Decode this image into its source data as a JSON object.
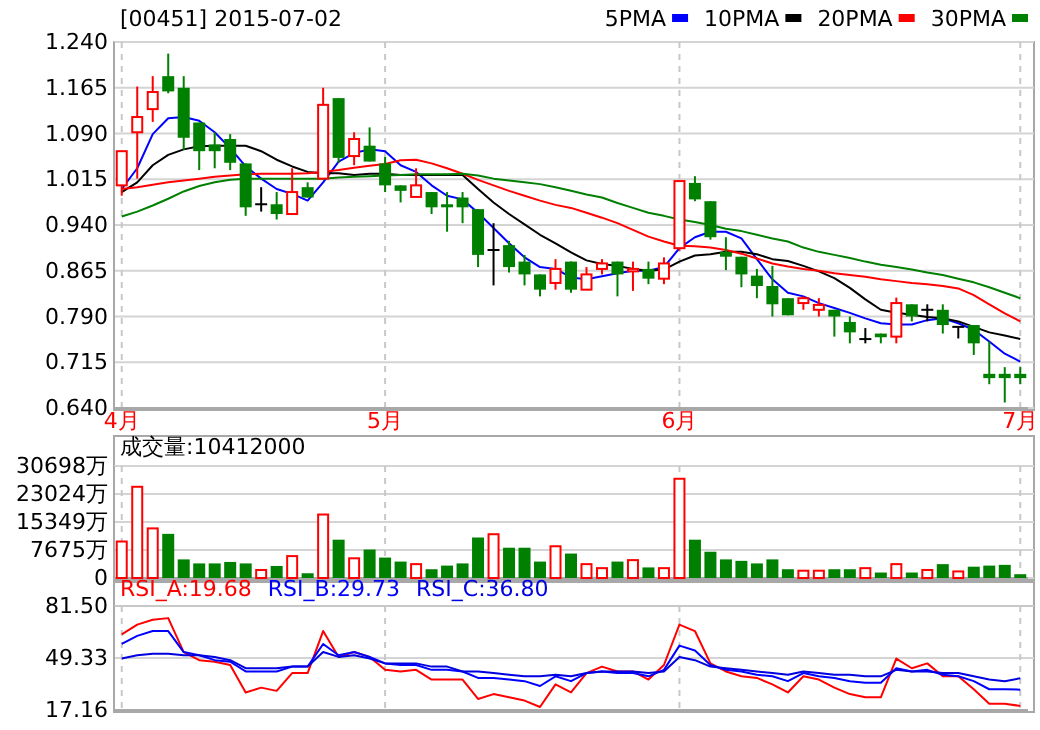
{
  "chart_data": [
    {
      "type": "candlestick",
      "title": "[00451] 2015-07-02",
      "categories": [
        "4月",
        null,
        null,
        null,
        null,
        null,
        null,
        null,
        null,
        null,
        null,
        null,
        null,
        null,
        null,
        null,
        null,
        "5月",
        null,
        null,
        null,
        null,
        null,
        null,
        null,
        null,
        null,
        null,
        null,
        null,
        null,
        null,
        null,
        null,
        null,
        null,
        "6月",
        null,
        null,
        null,
        null,
        null,
        null,
        null,
        null,
        null,
        null,
        null,
        null,
        null,
        null,
        null,
        null,
        null,
        null,
        null,
        null,
        null,
        "7月"
      ],
      "ylim": [
        0.64,
        1.24
      ],
      "yticks": [
        {
          "value": 0.64,
          "label": "0.640"
        },
        {
          "value": 0.715,
          "label": "0.715"
        },
        {
          "value": 0.79,
          "label": "0.790"
        },
        {
          "value": 0.865,
          "label": "0.865"
        },
        {
          "value": 0.94,
          "label": "0.940"
        },
        {
          "value": 1.015,
          "label": "1.015"
        },
        {
          "value": 1.09,
          "label": "1.090"
        },
        {
          "value": 1.165,
          "label": "1.165"
        },
        {
          "value": 1.24,
          "label": "1.240"
        }
      ],
      "grid": true,
      "legend": "top right",
      "series": [
        {
          "name": "5PMA",
          "type": "line",
          "color": "#0000ff",
          "values": [
            0.999,
            1.033,
            1.089,
            1.115,
            1.117,
            1.111,
            1.092,
            1.066,
            1.036,
            1.016,
            0.999,
            0.991,
            0.98,
            1.01,
            1.044,
            1.058,
            1.064,
            1.061,
            1.038,
            1.027,
            1.005,
            0.988,
            0.982,
            0.96,
            0.935,
            0.91,
            0.887,
            0.871,
            0.868,
            0.854,
            0.851,
            0.856,
            0.861,
            0.865,
            0.865,
            0.871,
            0.902,
            0.92,
            0.929,
            0.929,
            0.918,
            0.884,
            0.851,
            0.829,
            0.823,
            0.812,
            0.804,
            0.796,
            0.787,
            0.779,
            0.777,
            0.777,
            0.784,
            0.787,
            0.779,
            0.768,
            0.749,
            0.729,
            0.716
          ]
        },
        {
          "name": "10PMA",
          "type": "line",
          "color": "#000000",
          "values": [
            0.994,
            1.01,
            1.038,
            1.055,
            1.064,
            1.069,
            1.07,
            1.07,
            1.07,
            1.061,
            1.047,
            1.036,
            1.027,
            1.025,
            1.025,
            1.022,
            1.024,
            1.024,
            1.022,
            1.022,
            1.022,
            1.022,
            1.022,
            0.999,
            0.977,
            0.958,
            0.941,
            0.924,
            0.91,
            0.895,
            0.882,
            0.876,
            0.873,
            0.868,
            0.865,
            0.867,
            0.88,
            0.89,
            0.892,
            0.896,
            0.896,
            0.892,
            0.884,
            0.881,
            0.873,
            0.864,
            0.853,
            0.837,
            0.818,
            0.801,
            0.796,
            0.793,
            0.789,
            0.787,
            0.782,
            0.773,
            0.764,
            0.759,
            0.753
          ]
        },
        {
          "name": "20PMA",
          "type": "line",
          "color": "#ff0000",
          "values": [
            0.999,
            1.002,
            1.006,
            1.01,
            1.013,
            1.016,
            1.019,
            1.021,
            1.023,
            1.024,
            1.024,
            1.024,
            1.025,
            1.027,
            1.03,
            1.034,
            1.037,
            1.04,
            1.046,
            1.047,
            1.041,
            1.033,
            1.024,
            1.014,
            1.005,
            0.996,
            0.988,
            0.98,
            0.973,
            0.968,
            0.96,
            0.952,
            0.943,
            0.932,
            0.921,
            0.913,
            0.906,
            0.905,
            0.903,
            0.899,
            0.893,
            0.885,
            0.877,
            0.872,
            0.868,
            0.865,
            0.861,
            0.858,
            0.855,
            0.851,
            0.848,
            0.845,
            0.843,
            0.84,
            0.836,
            0.825,
            0.81,
            0.795,
            0.782
          ]
        },
        {
          "name": "30PMA",
          "type": "line",
          "color": "#008000",
          "values": [
            0.954,
            0.962,
            0.972,
            0.983,
            0.995,
            1.004,
            1.01,
            1.014,
            1.016,
            1.016,
            1.016,
            1.016,
            1.016,
            1.016,
            1.018,
            1.019,
            1.02,
            1.021,
            1.022,
            1.023,
            1.023,
            1.023,
            1.024,
            1.021,
            1.016,
            1.013,
            1.01,
            1.007,
            1.002,
            0.996,
            0.99,
            0.985,
            0.976,
            0.968,
            0.96,
            0.955,
            0.949,
            0.945,
            0.94,
            0.934,
            0.93,
            0.924,
            0.918,
            0.913,
            0.903,
            0.896,
            0.891,
            0.886,
            0.88,
            0.875,
            0.871,
            0.867,
            0.862,
            0.858,
            0.852,
            0.846,
            0.838,
            0.829,
            0.82
          ]
        },
        {
          "type": "candlestick",
          "ohlc": [
            [
              1.005,
              1.061,
              0.988,
              1.061
            ],
            [
              1.092,
              1.167,
              1.016,
              1.117
            ],
            [
              1.13,
              1.184,
              1.109,
              1.158
            ],
            [
              1.184,
              1.221,
              1.156,
              1.159
            ],
            [
              1.165,
              1.184,
              1.063,
              1.083
            ],
            [
              1.108,
              1.108,
              1.03,
              1.061
            ],
            [
              1.072,
              1.092,
              1.033,
              1.061
            ],
            [
              1.081,
              1.089,
              1.03,
              1.042
            ],
            [
              1.041,
              1.041,
              0.955,
              0.969
            ],
            [
              0.974,
              1.002,
              0.962,
              0.974
            ],
            [
              0.974,
              0.994,
              0.949,
              0.958
            ],
            [
              0.958,
              1.033,
              0.957,
              0.994
            ],
            [
              1.002,
              1.01,
              0.985,
              0.985
            ],
            [
              1.016,
              1.165,
              1.016,
              1.137
            ],
            [
              1.148,
              1.148,
              1.042,
              1.05
            ],
            [
              1.053,
              1.092,
              1.038,
              1.081
            ],
            [
              1.07,
              1.1,
              1.044,
              1.044
            ],
            [
              1.041,
              1.052,
              0.994,
              1.005
            ],
            [
              1.005,
              1.005,
              0.977,
              0.996
            ],
            [
              0.986,
              1.033,
              0.986,
              1.005
            ],
            [
              0.994,
              0.994,
              0.958,
              0.969
            ],
            [
              0.974,
              0.994,
              0.929,
              0.969
            ],
            [
              0.985,
              0.994,
              0.943,
              0.969
            ],
            [
              0.966,
              0.966,
              0.871,
              0.891
            ],
            [
              0.899,
              0.943,
              0.841,
              0.899
            ],
            [
              0.907,
              0.914,
              0.862,
              0.871
            ],
            [
              0.88,
              0.891,
              0.841,
              0.859
            ],
            [
              0.859,
              0.859,
              0.823,
              0.834
            ],
            [
              0.845,
              0.884,
              0.834,
              0.868
            ],
            [
              0.88,
              0.88,
              0.829,
              0.834
            ],
            [
              0.834,
              0.871,
              0.834,
              0.859
            ],
            [
              0.868,
              0.884,
              0.859,
              0.877
            ],
            [
              0.88,
              0.88,
              0.823,
              0.859
            ],
            [
              0.864,
              0.88,
              0.832,
              0.868
            ],
            [
              0.868,
              0.88,
              0.843,
              0.852
            ],
            [
              0.852,
              0.887,
              0.843,
              0.877
            ],
            [
              0.902,
              1.012,
              0.898,
              1.012
            ],
            [
              1.009,
              1.02,
              0.979,
              0.982
            ],
            [
              0.979,
              0.979,
              0.916,
              0.92
            ],
            [
              0.896,
              0.92,
              0.866,
              0.888
            ],
            [
              0.888,
              0.888,
              0.838,
              0.859
            ],
            [
              0.857,
              0.868,
              0.82,
              0.84
            ],
            [
              0.84,
              0.873,
              0.79,
              0.81
            ],
            [
              0.82,
              0.82,
              0.792,
              0.792
            ],
            [
              0.812,
              0.823,
              0.801,
              0.82
            ],
            [
              0.801,
              0.82,
              0.79,
              0.809
            ],
            [
              0.801,
              0.801,
              0.757,
              0.79
            ],
            [
              0.781,
              0.79,
              0.746,
              0.764
            ],
            [
              0.753,
              0.771,
              0.746,
              0.753
            ],
            [
              0.762,
              0.762,
              0.746,
              0.756
            ],
            [
              0.757,
              0.821,
              0.746,
              0.812
            ],
            [
              0.81,
              0.81,
              0.782,
              0.79
            ],
            [
              0.801,
              0.81,
              0.782,
              0.801
            ],
            [
              0.801,
              0.81,
              0.762,
              0.776
            ],
            [
              0.773,
              0.773,
              0.754,
              0.773
            ],
            [
              0.776,
              0.776,
              0.727,
              0.746
            ],
            [
              0.696,
              0.749,
              0.679,
              0.689
            ],
            [
              0.696,
              0.707,
              0.649,
              0.689
            ],
            [
              0.696,
              0.707,
              0.679,
              0.689
            ]
          ],
          "colors": [
            "#ff0000",
            "#ff0000",
            "#ff0000",
            "#008000",
            "#008000",
            "#008000",
            "#008000",
            "#008000",
            "#008000",
            "#000000",
            "#008000",
            "#ff0000",
            "#008000",
            "#ff0000",
            "#008000",
            "#ff0000",
            "#008000",
            "#008000",
            "#008000",
            "#ff0000",
            "#008000",
            "#008000",
            "#008000",
            "#008000",
            "#000000",
            "#008000",
            "#008000",
            "#008000",
            "#ff0000",
            "#008000",
            "#ff0000",
            "#ff0000",
            "#008000",
            "#ff0000",
            "#008000",
            "#ff0000",
            "#ff0000",
            "#008000",
            "#008000",
            "#008000",
            "#008000",
            "#008000",
            "#008000",
            "#008000",
            "#ff0000",
            "#ff0000",
            "#008000",
            "#008000",
            "#000000",
            "#008000",
            "#ff0000",
            "#008000",
            "#000000",
            "#008000",
            "#000000",
            "#008000",
            "#008000",
            "#008000",
            "#008000"
          ]
        }
      ]
    },
    {
      "type": "bar",
      "title": "成交量:10412000",
      "categories": [
        null,
        null,
        null,
        null,
        null,
        null,
        null,
        null,
        null,
        null,
        null,
        null,
        null,
        null,
        null,
        null,
        null,
        null,
        null,
        null,
        null,
        null,
        null,
        null,
        null,
        null,
        null,
        null,
        null,
        null,
        null,
        null,
        null,
        null,
        null,
        null,
        null,
        null,
        null,
        null,
        null,
        null,
        null,
        null,
        null,
        null,
        null,
        null,
        null,
        null,
        null,
        null,
        null,
        null,
        null,
        null,
        null,
        null,
        null
      ],
      "tick_labels": "y",
      "grid": true,
      "ylim": [
        0,
        30698
      ],
      "yticks": [
        0,
        {
          "value": 7675,
          "label": "7675万"
        },
        {
          "value": 15349,
          "label": "15349万"
        },
        {
          "value": 23024,
          "label": "23024万"
        },
        {
          "value": 30698,
          "label": "30698万"
        }
      ],
      "values": [
        10000,
        25000,
        13600,
        12100,
        5100,
        4000,
        4000,
        4400,
        4000,
        2200,
        3300,
        6000,
        1300,
        17400,
        10500,
        5400,
        7800,
        5600,
        4500,
        3800,
        2400,
        3400,
        4000,
        11100,
        12000,
        8300,
        8300,
        4500,
        8700,
        6700,
        3800,
        2700,
        4500,
        4900,
        2900,
        2700,
        27200,
        10500,
        7200,
        5100,
        4700,
        4000,
        5100,
        2400,
        2000,
        2000,
        2400,
        2400,
        2700,
        1500,
        3800,
        1500,
        2200,
        3800,
        1800,
        3100,
        3400,
        3600,
        1041.2
      ],
      "colors": [
        "#ff0000",
        "#ff0000",
        "#ff0000",
        "#008000",
        "#008000",
        "#008000",
        "#008000",
        "#008000",
        "#008000",
        "#ff0000",
        "#008000",
        "#ff0000",
        "#008000",
        "#ff0000",
        "#008000",
        "#ff0000",
        "#008000",
        "#008000",
        "#008000",
        "#ff0000",
        "#008000",
        "#008000",
        "#008000",
        "#008000",
        "#ff0000",
        "#008000",
        "#008000",
        "#008000",
        "#ff0000",
        "#008000",
        "#ff0000",
        "#ff0000",
        "#008000",
        "#ff0000",
        "#008000",
        "#ff0000",
        "#ff0000",
        "#008000",
        "#008000",
        "#008000",
        "#008000",
        "#008000",
        "#008000",
        "#008000",
        "#ff0000",
        "#ff0000",
        "#008000",
        "#008000",
        "#ff0000",
        "#008000",
        "#ff0000",
        "#008000",
        "#ff0000",
        "#008000",
        "#ff0000",
        "#008000",
        "#008000",
        "#008000",
        "#008000"
      ]
    },
    {
      "type": "line",
      "categories": [
        null,
        null,
        null,
        null,
        null,
        null,
        null,
        null,
        null,
        null,
        null,
        null,
        null,
        null,
        null,
        null,
        null,
        null,
        null,
        null,
        null,
        null,
        null,
        null,
        null,
        null,
        null,
        null,
        null,
        null,
        null,
        null,
        null,
        null,
        null,
        null,
        null,
        null,
        null,
        null,
        null,
        null,
        null,
        null,
        null,
        null,
        null,
        null,
        null,
        null,
        null,
        null,
        null,
        null,
        null,
        null,
        null,
        null,
        null
      ],
      "tick_labels": "y",
      "grid": "x",
      "legend": "top left",
      "ylim": [
        17.16,
        81.5
      ],
      "ref_lines": [
        {
          "axis": "y",
          "value": 49.33,
          "color": "#d4d4d4"
        }
      ],
      "yticks": [
        17.16,
        49.33,
        {
          "value": 81.5,
          "label": "81.50"
        }
      ],
      "series": [
        {
          "name": "RSI_A:19.68",
          "color": "#ff0000",
          "values": [
            64,
            70,
            73,
            74,
            53,
            48,
            47,
            45,
            28,
            31,
            29,
            40,
            40,
            66,
            50,
            53,
            50,
            42,
            41,
            42,
            36,
            36,
            36,
            24,
            27,
            25,
            23,
            19,
            33,
            28,
            40,
            44,
            41,
            41,
            36,
            45,
            70,
            66,
            46,
            41,
            38,
            37,
            33,
            28,
            38,
            36,
            31,
            27,
            25,
            25,
            49,
            43,
            46,
            38,
            38,
            30,
            21,
            21,
            19.68
          ]
        },
        {
          "name": "RSI_B:29.73",
          "color": "#0000ff",
          "values": [
            58,
            63,
            66,
            66,
            53,
            51,
            48,
            47,
            41,
            41,
            41,
            44,
            44,
            58,
            51,
            53,
            50,
            46,
            45,
            45,
            42,
            42,
            41,
            37,
            37,
            36,
            35,
            32,
            38,
            35,
            40,
            41,
            40,
            40,
            38,
            42,
            57,
            54,
            45,
            42,
            41,
            39,
            38,
            35,
            40,
            38,
            37,
            35,
            34,
            34,
            43,
            41,
            42,
            39,
            38,
            35,
            30,
            30,
            29.73
          ]
        },
        {
          "name": "RSI_C:36.80",
          "color": "#0000e0",
          "values": [
            49,
            51,
            52,
            52,
            51,
            51,
            50,
            48,
            43,
            43,
            43,
            44,
            44,
            53,
            50,
            51,
            49,
            46,
            46,
            46,
            44,
            44,
            41,
            41,
            40,
            39,
            38,
            38,
            39,
            38,
            40,
            41,
            41,
            41,
            40,
            41,
            50,
            48,
            44,
            43,
            42,
            41,
            40,
            39,
            41,
            40,
            39,
            39,
            38,
            38,
            42,
            41,
            41,
            40,
            40,
            38,
            36,
            35,
            36.8
          ]
        }
      ]
    }
  ]
}
